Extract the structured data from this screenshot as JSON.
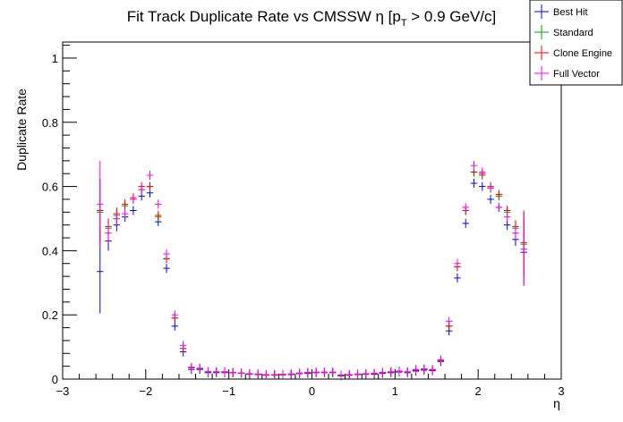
{
  "chart_data": {
    "type": "scatter",
    "title": "Fit Track Duplicate Rate vs CMSSW η [p",
    "title_sub": "T",
    "title_suffix": " > 0.9 GeV/c]",
    "xlabel": "η",
    "ylabel": "Duplicate Rate",
    "xlim": [
      -3.0,
      3.0
    ],
    "ylim": [
      0,
      1.05
    ],
    "x_ticks": [
      -3,
      -2,
      -1,
      0,
      1,
      2,
      3
    ],
    "x_tick_labels": [
      "−3",
      "−2",
      "−1",
      "0",
      "1",
      "2",
      "3"
    ],
    "y_ticks": [
      0,
      0.2,
      0.4,
      0.6,
      0.8,
      1
    ],
    "y_tick_labels": [
      "0",
      "0.2",
      "0.4",
      "0.6",
      "0.8",
      "1"
    ],
    "legend_position": "top-right",
    "x": [
      -2.55,
      -2.45,
      -2.35,
      -2.25,
      -2.15,
      -2.05,
      -1.95,
      -1.85,
      -1.75,
      -1.65,
      -1.55,
      -1.45,
      -1.35,
      -1.25,
      -1.15,
      -1.05,
      -0.95,
      -0.85,
      -0.75,
      -0.65,
      -0.55,
      -0.45,
      -0.35,
      -0.25,
      -0.15,
      -0.05,
      0.05,
      0.15,
      0.25,
      0.35,
      0.45,
      0.55,
      0.65,
      0.75,
      0.85,
      0.95,
      1.05,
      1.15,
      1.25,
      1.35,
      1.45,
      1.55,
      1.65,
      1.75,
      1.85,
      1.95,
      2.05,
      2.15,
      2.25,
      2.35,
      2.45,
      2.55
    ],
    "x_halfwidth": 0.05,
    "series": [
      {
        "name": "Best Hit",
        "color": "#0000ff",
        "values": [
          0.335,
          0.43,
          0.48,
          0.505,
          0.525,
          0.57,
          0.58,
          0.49,
          0.345,
          0.165,
          0.085,
          0.03,
          0.03,
          0.02,
          0.02,
          0.02,
          0.02,
          0.018,
          0.015,
          0.014,
          0.012,
          0.012,
          0.013,
          0.014,
          0.017,
          0.018,
          0.02,
          0.02,
          0.02,
          0.01,
          0.012,
          0.014,
          0.015,
          0.015,
          0.018,
          0.02,
          0.022,
          0.02,
          0.025,
          0.028,
          0.026,
          0.055,
          0.15,
          0.315,
          0.485,
          0.61,
          0.6,
          0.56,
          0.535,
          0.48,
          0.435,
          0.395
        ],
        "errors": [
          0.13,
          0.03,
          0.02,
          0.015,
          0.012,
          0.01,
          0.01,
          0.01,
          0.01,
          0.01,
          0.006,
          0.004,
          0.003,
          0.003,
          0.003,
          0.003,
          0.003,
          0.003,
          0.003,
          0.003,
          0.003,
          0.003,
          0.003,
          0.003,
          0.003,
          0.003,
          0.003,
          0.003,
          0.003,
          0.003,
          0.003,
          0.003,
          0.003,
          0.003,
          0.003,
          0.003,
          0.003,
          0.003,
          0.003,
          0.003,
          0.004,
          0.005,
          0.008,
          0.01,
          0.01,
          0.01,
          0.01,
          0.012,
          0.012,
          0.015,
          0.02,
          0.1
        ]
      },
      {
        "name": "Standard",
        "color": "#00aa00",
        "values": [
          0.52,
          0.47,
          0.51,
          0.54,
          0.56,
          0.59,
          0.6,
          0.505,
          0.375,
          0.19,
          0.095,
          0.035,
          0.032,
          0.022,
          0.022,
          0.022,
          0.02,
          0.018,
          0.016,
          0.015,
          0.013,
          0.013,
          0.014,
          0.015,
          0.018,
          0.02,
          0.021,
          0.021,
          0.021,
          0.012,
          0.013,
          0.015,
          0.016,
          0.017,
          0.02,
          0.022,
          0.024,
          0.022,
          0.028,
          0.03,
          0.028,
          0.058,
          0.165,
          0.35,
          0.525,
          0.645,
          0.635,
          0.595,
          0.57,
          0.52,
          0.47,
          0.42
        ],
        "errors": [
          0.1,
          0.025,
          0.02,
          0.015,
          0.012,
          0.01,
          0.01,
          0.01,
          0.01,
          0.01,
          0.006,
          0.004,
          0.003,
          0.003,
          0.003,
          0.003,
          0.003,
          0.003,
          0.003,
          0.003,
          0.003,
          0.003,
          0.003,
          0.003,
          0.003,
          0.003,
          0.003,
          0.003,
          0.003,
          0.003,
          0.003,
          0.003,
          0.003,
          0.003,
          0.003,
          0.003,
          0.003,
          0.003,
          0.003,
          0.003,
          0.004,
          0.005,
          0.008,
          0.01,
          0.01,
          0.01,
          0.01,
          0.012,
          0.012,
          0.015,
          0.02,
          0.1
        ]
      },
      {
        "name": "Clone Engine",
        "color": "#ff0000",
        "values": [
          0.525,
          0.475,
          0.515,
          0.545,
          0.565,
          0.6,
          0.6,
          0.51,
          0.375,
          0.19,
          0.095,
          0.035,
          0.033,
          0.023,
          0.022,
          0.022,
          0.02,
          0.019,
          0.016,
          0.015,
          0.013,
          0.013,
          0.014,
          0.016,
          0.018,
          0.02,
          0.021,
          0.021,
          0.021,
          0.012,
          0.013,
          0.015,
          0.016,
          0.017,
          0.02,
          0.022,
          0.024,
          0.022,
          0.028,
          0.031,
          0.028,
          0.058,
          0.165,
          0.35,
          0.525,
          0.645,
          0.64,
          0.6,
          0.575,
          0.525,
          0.475,
          0.425
        ],
        "errors": [
          0.1,
          0.025,
          0.02,
          0.015,
          0.012,
          0.01,
          0.01,
          0.01,
          0.01,
          0.01,
          0.006,
          0.004,
          0.003,
          0.003,
          0.003,
          0.003,
          0.003,
          0.003,
          0.003,
          0.003,
          0.003,
          0.003,
          0.003,
          0.003,
          0.003,
          0.003,
          0.003,
          0.003,
          0.003,
          0.003,
          0.003,
          0.003,
          0.003,
          0.003,
          0.003,
          0.003,
          0.003,
          0.003,
          0.003,
          0.003,
          0.004,
          0.005,
          0.008,
          0.01,
          0.01,
          0.01,
          0.01,
          0.012,
          0.012,
          0.015,
          0.02,
          0.1
        ]
      },
      {
        "name": "Full Vector",
        "color": "#ff00ff",
        "values": [
          0.545,
          0.455,
          0.5,
          0.515,
          0.56,
          0.59,
          0.635,
          0.545,
          0.39,
          0.2,
          0.105,
          0.037,
          0.034,
          0.023,
          0.023,
          0.023,
          0.021,
          0.019,
          0.017,
          0.016,
          0.014,
          0.014,
          0.015,
          0.016,
          0.019,
          0.021,
          0.022,
          0.022,
          0.022,
          0.013,
          0.014,
          0.016,
          0.017,
          0.018,
          0.021,
          0.023,
          0.025,
          0.023,
          0.03,
          0.032,
          0.03,
          0.06,
          0.18,
          0.36,
          0.535,
          0.665,
          0.645,
          0.595,
          0.535,
          0.505,
          0.455,
          0.405
        ],
        "errors": [
          0.135,
          0.03,
          0.02,
          0.015,
          0.012,
          0.01,
          0.01,
          0.01,
          0.01,
          0.01,
          0.006,
          0.004,
          0.003,
          0.003,
          0.003,
          0.003,
          0.003,
          0.003,
          0.003,
          0.003,
          0.003,
          0.003,
          0.003,
          0.003,
          0.003,
          0.003,
          0.003,
          0.003,
          0.003,
          0.003,
          0.003,
          0.003,
          0.003,
          0.003,
          0.003,
          0.003,
          0.003,
          0.003,
          0.003,
          0.003,
          0.004,
          0.005,
          0.008,
          0.01,
          0.01,
          0.01,
          0.01,
          0.012,
          0.012,
          0.015,
          0.02,
          0.115
        ]
      }
    ]
  }
}
